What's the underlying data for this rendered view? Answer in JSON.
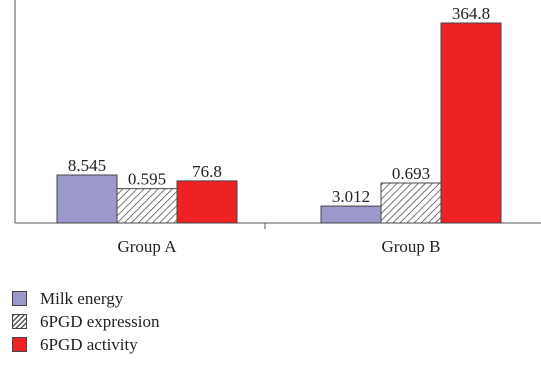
{
  "chart_data": {
    "type": "bar",
    "categories": [
      "Group A",
      "Group B"
    ],
    "series": [
      {
        "name": "Milk energy",
        "values": [
          8.545,
          3.012
        ],
        "labels": [
          "8.545",
          "3.012"
        ],
        "color": "#9b99cc",
        "pattern": "solid"
      },
      {
        "name": "6PGD expression",
        "values": [
          0.595,
          0.693
        ],
        "labels": [
          "0.595",
          "0.693"
        ],
        "color": "#ffffff",
        "pattern": "hatch"
      },
      {
        "name": "6PGD activity",
        "values": [
          76.8,
          364.8
        ],
        "labels": [
          "76.8",
          "364.8"
        ],
        "color": "#ee2222",
        "pattern": "solid"
      }
    ],
    "legend_position": "bottom-left",
    "grid": false
  }
}
